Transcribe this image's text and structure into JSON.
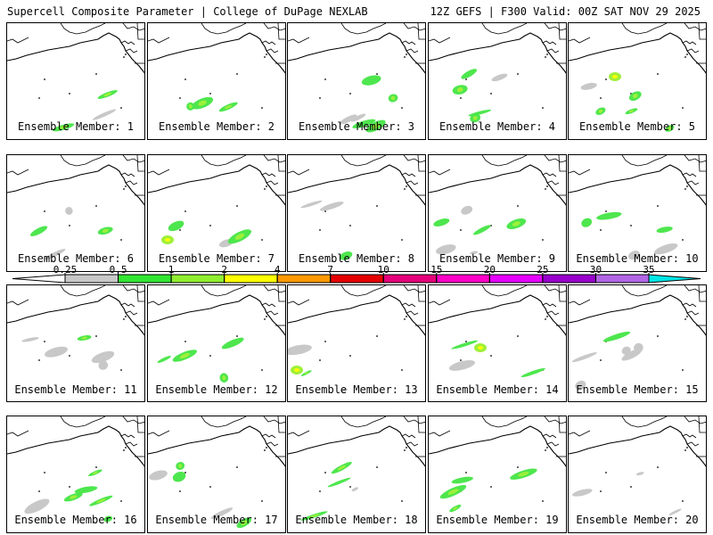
{
  "header": {
    "left": "Supercell Composite Parameter | College of DuPage NEXLAB",
    "right": "12Z GEFS | F300 Valid: 00Z SAT NOV 29 2025"
  },
  "members": [
    {
      "label": "Ensemble Member: 1"
    },
    {
      "label": "Ensemble Member: 2"
    },
    {
      "label": "Ensemble Member: 3"
    },
    {
      "label": "Ensemble Member: 4"
    },
    {
      "label": "Ensemble Member: 5"
    },
    {
      "label": "Ensemble Member: 6"
    },
    {
      "label": "Ensemble Member: 7"
    },
    {
      "label": "Ensemble Member: 8"
    },
    {
      "label": "Ensemble Member: 9"
    },
    {
      "label": "Ensemble Member: 10"
    },
    {
      "label": "Ensemble Member: 11"
    },
    {
      "label": "Ensemble Member: 12"
    },
    {
      "label": "Ensemble Member: 13"
    },
    {
      "label": "Ensemble Member: 14"
    },
    {
      "label": "Ensemble Member: 15"
    },
    {
      "label": "Ensemble Member: 16"
    },
    {
      "label": "Ensemble Member: 17"
    },
    {
      "label": "Ensemble Member: 18"
    },
    {
      "label": "Ensemble Member: 19"
    },
    {
      "label": "Ensemble Member: 20"
    }
  ],
  "legend": {
    "ticks": [
      "0.25",
      "0.5",
      "1",
      "2",
      "4",
      "7",
      "10",
      "15",
      "20",
      "25",
      "30",
      "35"
    ],
    "colors": [
      "#c8c8c8",
      "#32e632",
      "#90ee30",
      "#ffff00",
      "#ff9900",
      "#e60000",
      "#e6007a",
      "#ff00c8",
      "#e600ff",
      "#9900cc",
      "#b266e6",
      "#00e6e6"
    ]
  },
  "colors": {
    "gray": "#c8c8c8",
    "green": "#4ee64e",
    "lime": "#9ef03a",
    "yellow": "#ffff00"
  }
}
